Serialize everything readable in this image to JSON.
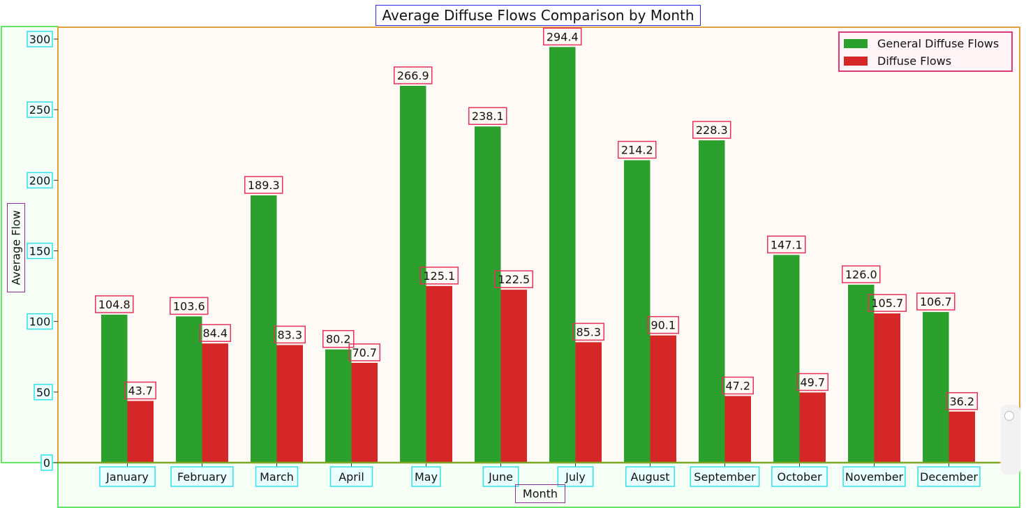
{
  "chart_data": {
    "type": "bar",
    "title": "Average Diffuse Flows Comparison by Month",
    "xlabel": "Month",
    "ylabel": "Average Flow",
    "ylim": [
      0,
      300
    ],
    "yticks": [
      "0",
      "50",
      "100",
      "150",
      "200",
      "250",
      "300"
    ],
    "categories": [
      "January",
      "February",
      "March",
      "April",
      "May",
      "June",
      "July",
      "August",
      "September",
      "October",
      "November",
      "December"
    ],
    "series": [
      {
        "name": "General Diffuse Flows",
        "color": "#2ca02c",
        "values": [
          104.8,
          103.6,
          189.3,
          80.2,
          266.9,
          238.1,
          294.4,
          214.2,
          228.3,
          147.1,
          126.0,
          106.7
        ]
      },
      {
        "name": "Diffuse Flows",
        "color": "#d62728",
        "values": [
          43.7,
          84.4,
          83.3,
          70.7,
          125.1,
          122.5,
          85.3,
          90.1,
          47.2,
          49.7,
          105.7,
          36.2
        ]
      }
    ],
    "data_labels": [
      [
        "104.8",
        "103.6",
        "189.3",
        "80.2",
        "266.9",
        "238.1",
        "294.4",
        "214.2",
        "228.3",
        "147.1",
        "126.0",
        "106.7"
      ],
      [
        "43.7",
        "84.4",
        "83.3",
        "70.7",
        "125.1",
        "122.5",
        "85.3",
        "90.1",
        "47.2",
        "49.7",
        "105.7",
        "36.2"
      ]
    ],
    "legend": "top-right",
    "grid": false,
    "plot_background": "#fffaf5"
  }
}
